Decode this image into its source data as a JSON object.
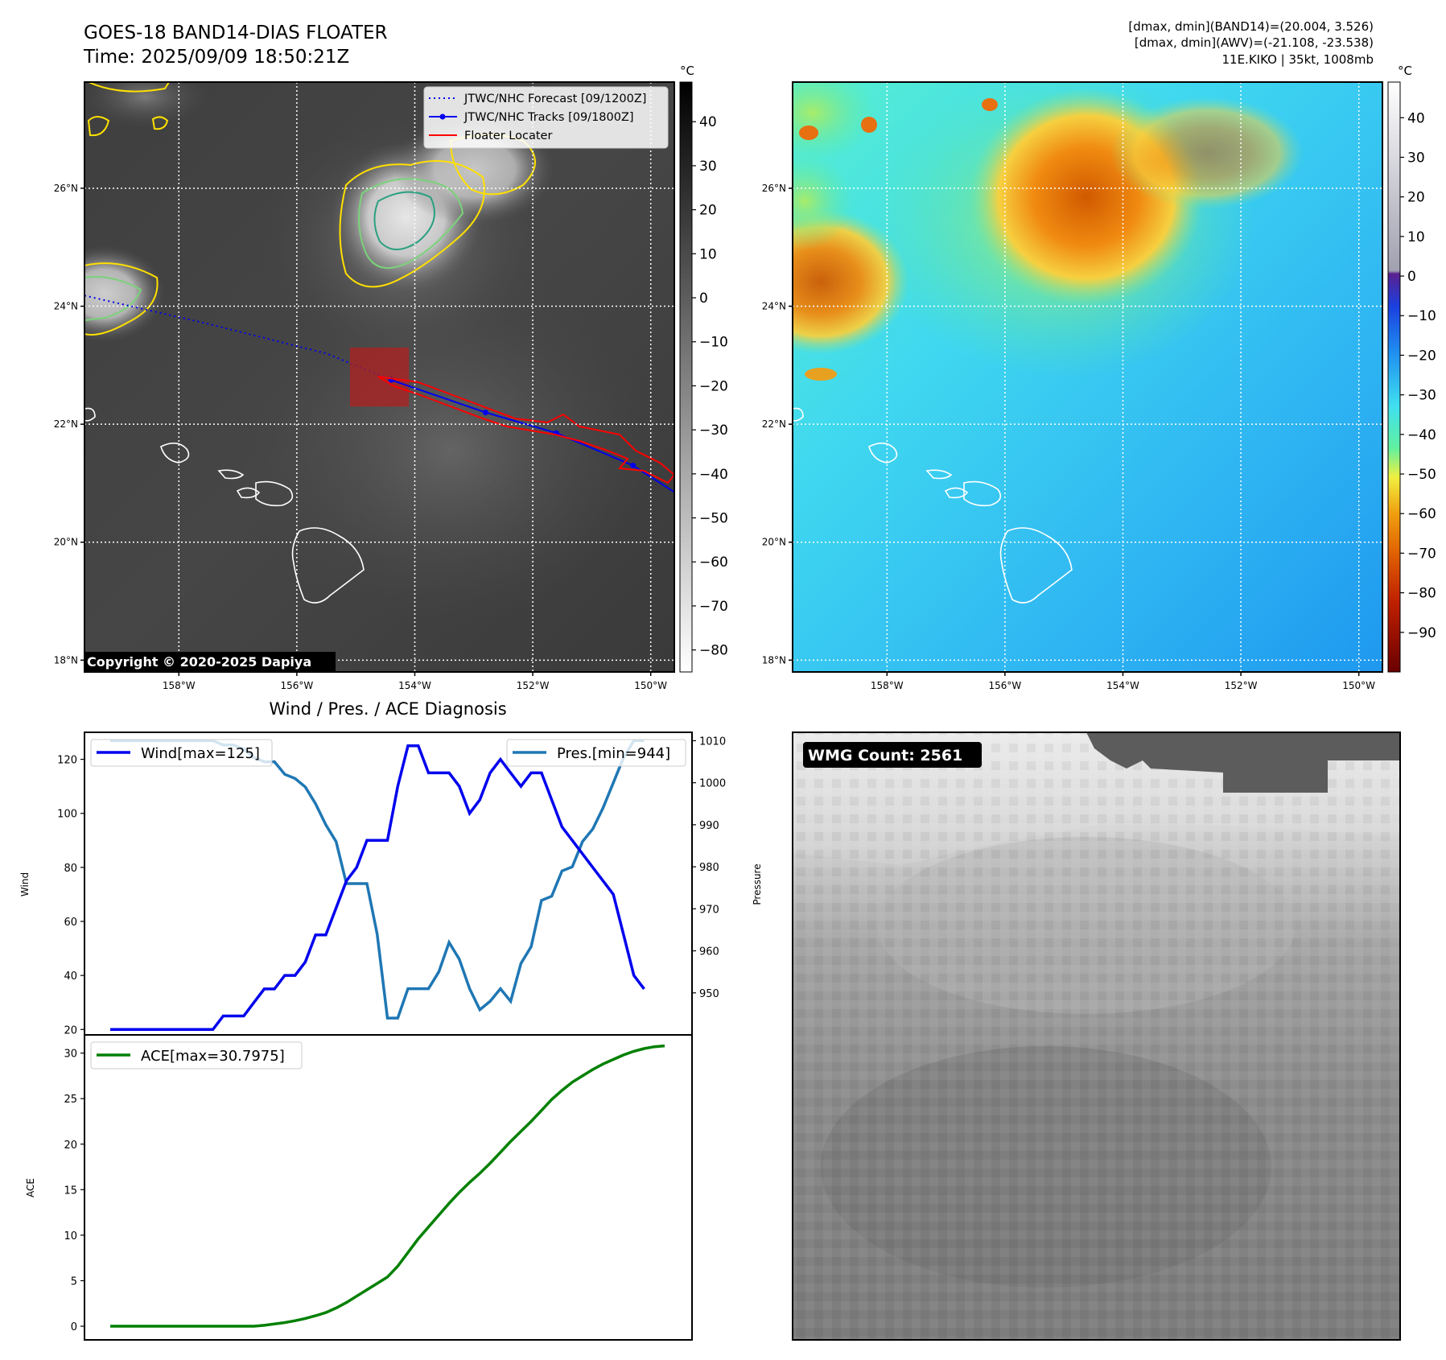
{
  "header": {
    "title": "GOES-18 BAND14-DIAS FLOATER",
    "time": "Time: 2025/09/09 18:50:21Z",
    "info_line1": "[dmax, dmin](BAND14)=(20.004, 3.526)",
    "info_line2": "[dmax, dmin](AWV)=(-21.108, -23.538)",
    "info_line3": "11E.KIKO | 35kt, 1008mb"
  },
  "maps": {
    "unit": "°C",
    "lat_labels": [
      "26°N",
      "24°N",
      "22°N",
      "20°N",
      "18°N"
    ],
    "lat_values": [
      26,
      24,
      22,
      20,
      18
    ],
    "lon_labels": [
      "158°W",
      "156°W",
      "154°W",
      "152°W",
      "150°W"
    ],
    "lon_values": [
      -158,
      -156,
      -154,
      -152,
      -150
    ],
    "lon_range": [
      -159.6,
      -149.6
    ],
    "lat_range": [
      17.8,
      27.8
    ],
    "ir_colorbar_ticks": [
      "40",
      "30",
      "20",
      "10",
      "0",
      "−10",
      "−20",
      "−30",
      "−40",
      "−50",
      "−60",
      "−70",
      "−80"
    ],
    "ir_colorbar_values": [
      40,
      30,
      20,
      10,
      0,
      -10,
      -20,
      -30,
      -40,
      -50,
      -60,
      -70,
      -80
    ],
    "ir_colorbar_range": [
      49,
      -85
    ],
    "awv_colorbar_ticks": [
      "40",
      "30",
      "20",
      "10",
      "0",
      "−10",
      "−20",
      "−30",
      "−40",
      "−50",
      "−60",
      "−70",
      "−80",
      "−90"
    ],
    "awv_colorbar_values": [
      40,
      30,
      20,
      10,
      0,
      -10,
      -20,
      -30,
      -40,
      -50,
      -60,
      -70,
      -80,
      -90
    ],
    "awv_colorbar_range": [
      49,
      -100
    ],
    "legend": {
      "forecast": "JTWC/NHC Forecast [09/1200Z]",
      "tracks": "JTWC/NHC Tracks [09/1800Z]",
      "locater": "Floater Locater"
    },
    "copyright": "Copyright © 2020-2025 Dapiya",
    "forecast_track": [
      [
        -159.6,
        24.18
      ],
      [
        -157.5,
        23.7
      ],
      [
        -155.5,
        23.2
      ],
      [
        -154.4,
        22.75
      ]
    ],
    "observed_track": [
      [
        -154.4,
        22.75
      ],
      [
        -152.8,
        22.2
      ],
      [
        -151.6,
        21.85
      ],
      [
        -150.3,
        21.3
      ],
      [
        -149.6,
        20.85
      ]
    ],
    "floater_box": {
      "lon": [
        -155.1,
        -154.1
      ],
      "lat": [
        22.3,
        23.3
      ]
    }
  },
  "chart_data": [
    {
      "type": "line",
      "title": "Wind / Pres. / ACE Diagnosis",
      "ylabel": "Wind",
      "ylabel_right": "Pressure",
      "ylim": [
        18,
        130
      ],
      "ylim_right": [
        940,
        1012
      ],
      "yticks": [
        20,
        40,
        60,
        80,
        100,
        120
      ],
      "yticks_right": [
        950,
        960,
        970,
        980,
        990,
        1000,
        1010
      ],
      "x": [
        0,
        1,
        2,
        3,
        4,
        5,
        6,
        7,
        8,
        9,
        10,
        11,
        12,
        13,
        14,
        15,
        16,
        17,
        18,
        19,
        20,
        21,
        22,
        23,
        24,
        25,
        26,
        27,
        28,
        29,
        30,
        31,
        32,
        33,
        34,
        35,
        36,
        37,
        38,
        39,
        40,
        41,
        42,
        43,
        44,
        45,
        46,
        47,
        48,
        49,
        50,
        51,
        52,
        53,
        54
      ],
      "series": [
        {
          "name": "Wind[max=125]",
          "color": "#0000ee",
          "values": [
            20,
            20,
            20,
            20,
            20,
            20,
            20,
            20,
            20,
            20,
            20,
            25,
            25,
            25,
            30,
            35,
            35,
            40,
            40,
            45,
            55,
            55,
            65,
            75,
            80,
            90,
            90,
            90,
            110,
            125,
            125,
            115,
            115,
            115,
            110,
            100,
            105,
            115,
            120,
            115,
            110,
            115,
            115,
            105,
            95,
            90,
            85,
            80,
            75,
            70,
            55,
            40,
            35,
            null,
            null
          ]
        },
        {
          "name": "Pres.[min=944]",
          "color": "#1f77b4",
          "values": [
            1010,
            1010,
            1010,
            1010,
            1010,
            1010,
            1010,
            1010,
            1010,
            1010,
            1010,
            1009,
            1009,
            1008,
            1006,
            1005,
            1005,
            1002,
            1001,
            999,
            995,
            990,
            986,
            976,
            976,
            976,
            964,
            944,
            944,
            951,
            951,
            951,
            955,
            962,
            958,
            951,
            946,
            948,
            951,
            948,
            957,
            961,
            972,
            973,
            979,
            980,
            986,
            989,
            994,
            1000,
            1006,
            1010,
            1010,
            null,
            null
          ]
        }
      ]
    },
    {
      "type": "line",
      "ylabel": "ACE",
      "ylim": [
        -1.5,
        32
      ],
      "yticks": [
        0,
        5,
        10,
        15,
        20,
        25,
        30
      ],
      "x": [
        0,
        1,
        2,
        3,
        4,
        5,
        6,
        7,
        8,
        9,
        10,
        11,
        12,
        13,
        14,
        15,
        16,
        17,
        18,
        19,
        20,
        21,
        22,
        23,
        24,
        25,
        26,
        27,
        28,
        29,
        30,
        31,
        32,
        33,
        34,
        35,
        36,
        37,
        38,
        39,
        40,
        41,
        42,
        43,
        44,
        45,
        46,
        47,
        48,
        49,
        50,
        51,
        52,
        53,
        54
      ],
      "series": [
        {
          "name": "ACE[max=30.7975]",
          "color": "#008000",
          "values": [
            0,
            0,
            0,
            0,
            0,
            0,
            0,
            0,
            0,
            0,
            0,
            0,
            0,
            0,
            0,
            0.1,
            0.25,
            0.4,
            0.6,
            0.85,
            1.15,
            1.5,
            2.0,
            2.6,
            3.3,
            4.0,
            4.7,
            5.4,
            6.6,
            8.1,
            9.6,
            10.9,
            12.2,
            13.5,
            14.7,
            15.8,
            16.8,
            17.9,
            19.1,
            20.3,
            21.4,
            22.5,
            23.7,
            24.9,
            25.9,
            26.8,
            27.5,
            28.2,
            28.8,
            29.3,
            29.8,
            30.2,
            30.5,
            30.7,
            30.8
          ]
        }
      ]
    }
  ],
  "wmg": {
    "label": "WMG Count: 2561"
  }
}
